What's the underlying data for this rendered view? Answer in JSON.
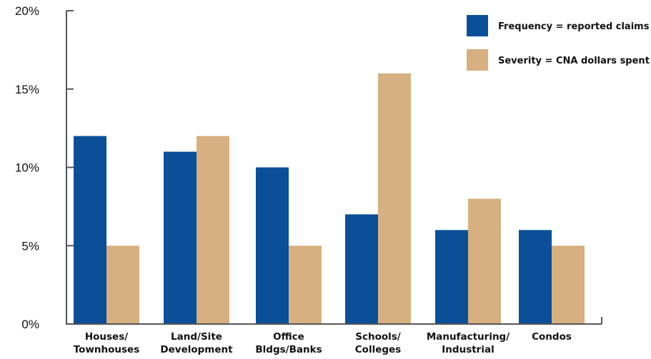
{
  "chart_data": {
    "type": "bar",
    "categories": [
      [
        "Houses/",
        "Townhouses"
      ],
      [
        "Land/Site",
        "Development"
      ],
      [
        "Office",
        "Bldgs/Banks"
      ],
      [
        "Schools/",
        "Colleges"
      ],
      [
        "Manufacturing/",
        "Industrial"
      ],
      [
        "Condos"
      ]
    ],
    "series": [
      {
        "name": "Frequency = reported claims",
        "color": "#0b4f98",
        "values": [
          12,
          11,
          10,
          7,
          6,
          6
        ]
      },
      {
        "name": "Severity = CNA dollars spent",
        "color": "#d6b080",
        "values": [
          5,
          12,
          5,
          16,
          8,
          5
        ]
      }
    ],
    "yticks": [
      {
        "value": 0,
        "label": "0%"
      },
      {
        "value": 5,
        "label": "5%"
      },
      {
        "value": 10,
        "label": "10%"
      },
      {
        "value": 15,
        "label": "15%"
      },
      {
        "value": 20,
        "label": "20%"
      }
    ],
    "ylim": [
      0,
      20
    ],
    "legend_position": "top-right",
    "grid": false,
    "axis_color": "#555555"
  }
}
